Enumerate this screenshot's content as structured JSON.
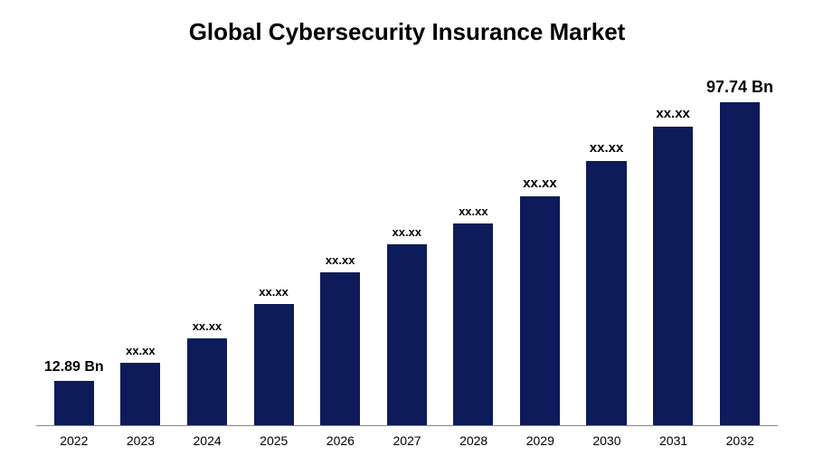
{
  "chart": {
    "type": "bar",
    "title": "Global Cybersecurity Insurance Market",
    "title_fontsize": 26,
    "title_color": "#000000",
    "background_color": "#ffffff",
    "axis_color": "#888888",
    "categories": [
      "2022",
      "2023",
      "2024",
      "2025",
      "2026",
      "2027",
      "2028",
      "2029",
      "2030",
      "2031",
      "2032"
    ],
    "values": [
      12.89,
      18,
      25,
      35,
      44,
      52,
      58,
      66,
      76,
      86,
      97.74
    ],
    "value_labels": [
      "12.89 Bn",
      "xx.xx",
      "xx.xx",
      "xx.xx",
      "xx.xx",
      "xx.xx",
      "xx.xx",
      "xx.xx",
      "xx.xx",
      "xx.xx",
      "97.74 Bn"
    ],
    "label_fontsizes": [
      16,
      13,
      13,
      13,
      13,
      13,
      13,
      15,
      15,
      15,
      18
    ],
    "bar_color": "#0d1b5a",
    "ylim": [
      0,
      100
    ],
    "x_label_fontsize": 14,
    "x_label_color": "#000000",
    "bar_width": 0.6
  }
}
